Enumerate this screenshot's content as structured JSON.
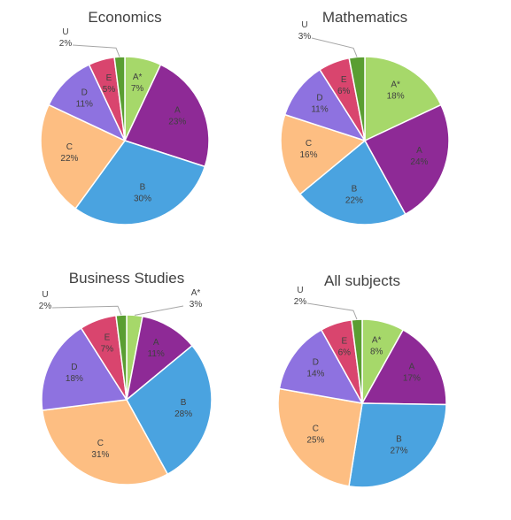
{
  "colors": {
    "A*": "#a6d86a",
    "A": "#8e2a96",
    "B": "#4aa3e0",
    "C": "#fdbe82",
    "D": "#8e72e0",
    "E": "#d9456e",
    "U": "#5a9e32",
    "label": "#404040",
    "leader": "#a6a6a6"
  },
  "chart_data": [
    {
      "type": "pie",
      "title": "Economics",
      "categories": [
        "A*",
        "A",
        "B",
        "C",
        "D",
        "E",
        "U"
      ],
      "values": [
        7,
        23,
        30,
        22,
        11,
        5,
        2
      ],
      "labels": [
        "7%",
        "23%",
        "30%",
        "22%",
        "11%",
        "5%",
        "2%"
      ]
    },
    {
      "type": "pie",
      "title": "Mathematics",
      "categories": [
        "A*",
        "A",
        "B",
        "C",
        "D",
        "E",
        "U"
      ],
      "values": [
        18,
        24,
        22,
        16,
        11,
        6,
        3
      ],
      "labels": [
        "18%",
        "24%",
        "22%",
        "16%",
        "11%",
        "6%",
        "3%"
      ]
    },
    {
      "type": "pie",
      "title": "Business Studies",
      "categories": [
        "A*",
        "A",
        "B",
        "C",
        "D",
        "E",
        "U"
      ],
      "values": [
        3,
        11,
        28,
        31,
        18,
        7,
        2
      ],
      "labels": [
        "3%",
        "11%",
        "28%",
        "31%",
        "18%",
        "7%",
        "2%"
      ]
    },
    {
      "type": "pie",
      "title": "All subjects",
      "categories": [
        "A*",
        "A",
        "B",
        "C",
        "D",
        "E",
        "U"
      ],
      "values": [
        8,
        17,
        27,
        25,
        14,
        6,
        2
      ],
      "labels": [
        "8%",
        "17%",
        "27%",
        "25%",
        "14%",
        "6%",
        "2%"
      ]
    }
  ]
}
